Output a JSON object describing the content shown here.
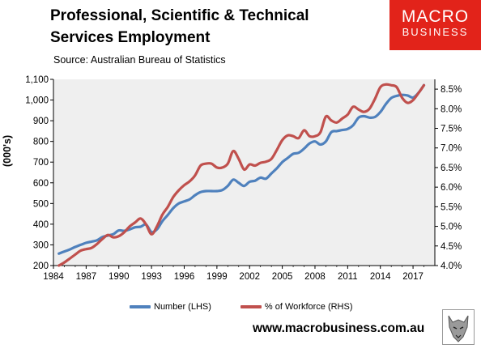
{
  "header": {
    "title_line1": "Professional, Scientific & Technical",
    "title_line2": "Services Employment",
    "source": "Source: Australian Bureau of Statistics"
  },
  "logo": {
    "line1": "MACRO",
    "line2": "BUSINESS",
    "color": "#e2231a"
  },
  "footer": {
    "url": "www.macrobusiness.com.au"
  },
  "chart_data": {
    "type": "line",
    "ylabel": "(000's)",
    "xlim": [
      1984,
      2019
    ],
    "ylim": [
      200,
      1100
    ],
    "y2lim": [
      4.0,
      8.75
    ],
    "x_ticks": [
      "1984",
      "1987",
      "1990",
      "1993",
      "1996",
      "1999",
      "2002",
      "2005",
      "2008",
      "2011",
      "2014",
      "2017"
    ],
    "y_ticks": [
      "200",
      "300",
      "400",
      "500",
      "600",
      "700",
      "800",
      "900",
      "1,000",
      "1,100"
    ],
    "y2_ticks": [
      "4.0%",
      "4.5%",
      "5.0%",
      "5.5%",
      "6.0%",
      "6.5%",
      "7.0%",
      "7.5%",
      "8.0%",
      "8.5%"
    ],
    "grid": false,
    "plot_background": "#efefef",
    "legend_position": "bottom",
    "series": [
      {
        "name": "Number (LHS)",
        "axis": "left",
        "color": "#4f81bd",
        "x": [
          1984.5,
          1985,
          1985.5,
          1986,
          1986.5,
          1987,
          1987.5,
          1988,
          1988.5,
          1989,
          1989.5,
          1990,
          1990.5,
          1991,
          1991.5,
          1992,
          1992.5,
          1993,
          1993.5,
          1994,
          1994.5,
          1995,
          1995.5,
          1996,
          1996.5,
          1997,
          1997.5,
          1998,
          1998.5,
          1999,
          1999.5,
          2000,
          2000.5,
          2001,
          2001.5,
          2002,
          2002.5,
          2003,
          2003.5,
          2004,
          2004.5,
          2005,
          2005.5,
          2006,
          2006.5,
          2007,
          2007.5,
          2008,
          2008.5,
          2009,
          2009.5,
          2010,
          2010.5,
          2011,
          2011.5,
          2012,
          2012.5,
          2013,
          2013.5,
          2014,
          2014.5,
          2015,
          2015.5,
          2016,
          2016.5,
          2017,
          2017.5,
          2018
        ],
        "values": [
          258,
          268,
          278,
          290,
          300,
          310,
          316,
          322,
          338,
          345,
          352,
          370,
          368,
          375,
          385,
          388,
          398,
          362,
          375,
          415,
          445,
          478,
          500,
          510,
          520,
          540,
          555,
          560,
          560,
          560,
          565,
          585,
          615,
          600,
          585,
          605,
          610,
          625,
          620,
          645,
          670,
          700,
          720,
          740,
          745,
          765,
          790,
          800,
          785,
          800,
          845,
          850,
          855,
          860,
          878,
          915,
          922,
          915,
          918,
          942,
          980,
          1010,
          1020,
          1025,
          1022,
          1012,
          1035,
          1072
        ]
      },
      {
        "name": "% of Workforce (RHS)",
        "axis": "right",
        "color": "#c0504d",
        "x": [
          1984.5,
          1985,
          1985.5,
          1986,
          1986.5,
          1987,
          1987.5,
          1988,
          1988.5,
          1989,
          1989.5,
          1990,
          1990.5,
          1991,
          1991.5,
          1992,
          1992.5,
          1993,
          1993.5,
          1994,
          1994.5,
          1995,
          1995.5,
          1996,
          1996.5,
          1997,
          1997.5,
          1998,
          1998.5,
          1999,
          1999.5,
          2000,
          2000.5,
          2001,
          2001.5,
          2002,
          2002.5,
          2003,
          2003.5,
          2004,
          2004.5,
          2005,
          2005.5,
          2006,
          2006.5,
          2007,
          2007.5,
          2008,
          2008.5,
          2009,
          2009.5,
          2010,
          2010.5,
          2011,
          2011.5,
          2012,
          2012.5,
          2013,
          2013.5,
          2014,
          2014.5,
          2015,
          2015.5,
          2016,
          2016.5,
          2017,
          2017.5,
          2018
        ],
        "values": [
          4.0,
          4.08,
          4.18,
          4.28,
          4.38,
          4.42,
          4.45,
          4.55,
          4.68,
          4.78,
          4.72,
          4.75,
          4.85,
          5.0,
          5.1,
          5.2,
          5.05,
          4.8,
          5.0,
          5.3,
          5.5,
          5.75,
          5.92,
          6.05,
          6.15,
          6.3,
          6.55,
          6.6,
          6.6,
          6.5,
          6.5,
          6.6,
          6.92,
          6.72,
          6.45,
          6.58,
          6.55,
          6.62,
          6.65,
          6.72,
          6.95,
          7.2,
          7.32,
          7.3,
          7.25,
          7.45,
          7.3,
          7.3,
          7.4,
          7.8,
          7.7,
          7.65,
          7.75,
          7.85,
          8.05,
          7.98,
          7.92,
          8.0,
          8.25,
          8.55,
          8.62,
          8.6,
          8.55,
          8.28,
          8.15,
          8.22,
          8.4,
          8.6
        ]
      }
    ]
  }
}
